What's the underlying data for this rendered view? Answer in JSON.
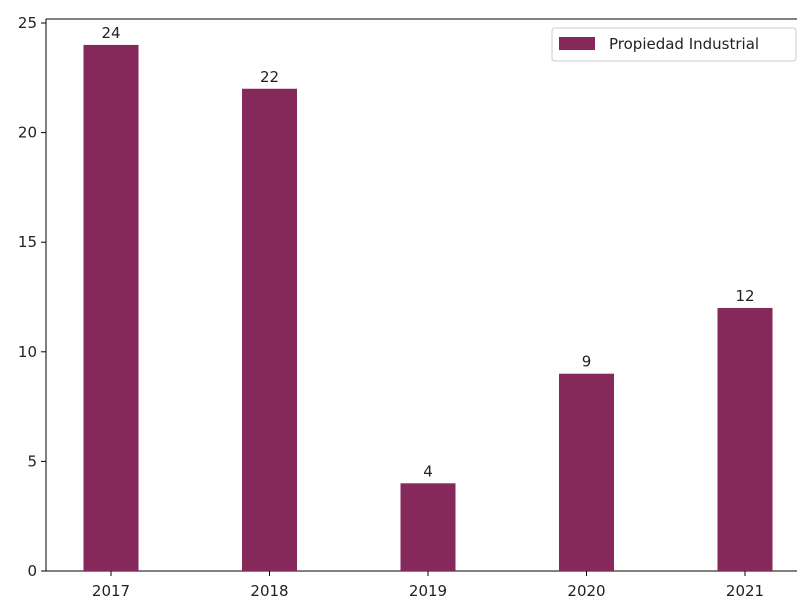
{
  "chart_data": {
    "type": "bar",
    "categories": [
      "2017",
      "2018",
      "2019",
      "2020",
      "2021"
    ],
    "series": [
      {
        "name": "Propiedad Industrial",
        "values": [
          24,
          22,
          4,
          9,
          12
        ],
        "color": "#85295a"
      }
    ],
    "data_labels": [
      "24",
      "22",
      "4",
      "9",
      "12"
    ],
    "y_ticks": [
      0,
      5,
      10,
      15,
      20,
      25
    ],
    "y_tick_labels": [
      "0",
      "5",
      "10",
      "15",
      "20",
      "25"
    ],
    "ylim": [
      0,
      25
    ],
    "grid": false,
    "legend_position": "top-right"
  }
}
